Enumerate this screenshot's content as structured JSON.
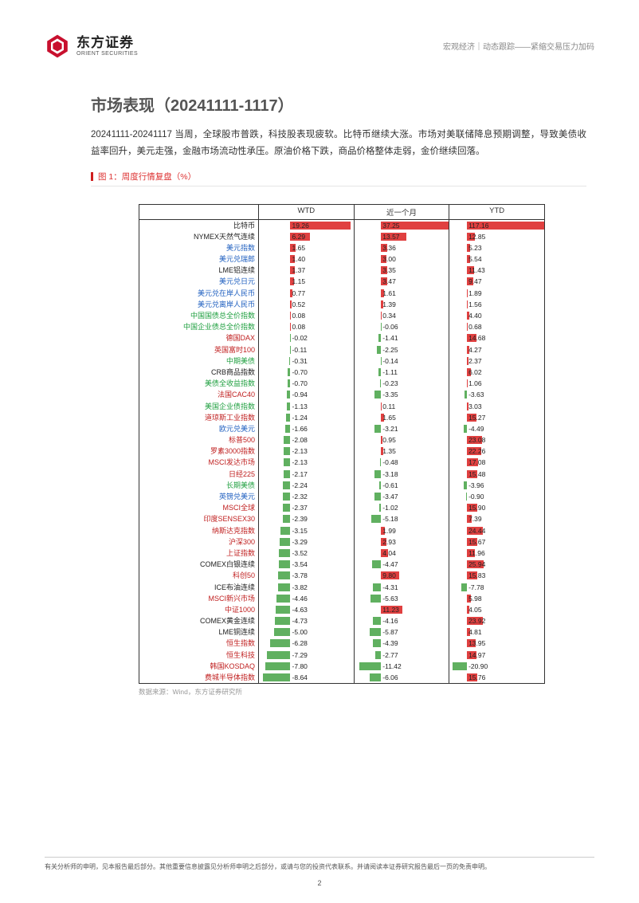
{
  "header": {
    "logo_cn": "东方证券",
    "logo_en": "ORIENT SECURITIES",
    "category": "宏观经济",
    "sep1": "｜",
    "subcategory": "动态跟踪",
    "sep2": " —— ",
    "doc_title": "紧缩交易压力加码"
  },
  "title": "市场表现（20241111-1117）",
  "paragraph": "20241111-20241117 当周，全球股市普跌，科技股表现疲软。比特币继续大涨。市场对美联储降息预期调整，导致美债收益率回升，美元走强，金融市场流动性承压。原油价格下跌，商品价格整体走弱，金价继续回落。",
  "figure": {
    "caption": "图 1：周度行情复盘（%）",
    "source": "数据来源：Wind，东方证券研究所",
    "columns": [
      "WTD",
      "近一个月",
      "YTD"
    ],
    "label_colors": {
      "default": "#c02020",
      "blue": "#2060c0",
      "green": "#20a040",
      "black": "#222222"
    },
    "bar_colors": {
      "pos": "#e04040",
      "neg": "#60b060"
    },
    "col_ranges": [
      {
        "min": -10,
        "max": 20,
        "zero_pct": 33
      },
      {
        "min": -12,
        "max": 38,
        "zero_pct": 28
      },
      {
        "min": -25,
        "max": 118,
        "zero_pct": 18
      }
    ],
    "rows": [
      {
        "label": "比特币",
        "color": "black",
        "v": [
          19.26,
          37.25,
          117.16
        ]
      },
      {
        "label": "NYMEX天然气连续",
        "color": "black",
        "v": [
          6.29,
          13.57,
          12.85
        ]
      },
      {
        "label": "美元指数",
        "color": "blue",
        "v": [
          1.65,
          3.36,
          5.23
        ]
      },
      {
        "label": "美元兑瑞郎",
        "color": "blue",
        "v": [
          1.4,
          3.0,
          5.54
        ]
      },
      {
        "label": "LME铝连续",
        "color": "black",
        "v": [
          1.37,
          3.35,
          11.43
        ]
      },
      {
        "label": "美元兑日元",
        "color": "blue",
        "v": [
          1.15,
          3.47,
          9.47
        ]
      },
      {
        "label": "美元兑在岸人民币",
        "color": "blue",
        "v": [
          0.77,
          1.61,
          1.89
        ]
      },
      {
        "label": "美元兑离岸人民币",
        "color": "blue",
        "v": [
          0.52,
          1.39,
          1.56
        ]
      },
      {
        "label": "中国国债总全价指数",
        "color": "green",
        "v": [
          0.08,
          0.34,
          4.4
        ]
      },
      {
        "label": "中国企业债总全价指数",
        "color": "green",
        "v": [
          0.08,
          -0.06,
          0.68
        ]
      },
      {
        "label": "德国DAX",
        "color": "default",
        "v": [
          -0.02,
          -1.41,
          14.68
        ]
      },
      {
        "label": "英国富时100",
        "color": "default",
        "v": [
          -0.11,
          -2.25,
          4.27
        ]
      },
      {
        "label": "中期美债",
        "color": "green",
        "v": [
          -0.31,
          -0.14,
          2.37
        ]
      },
      {
        "label": "CRB商品指数",
        "color": "black",
        "v": [
          -0.7,
          -1.11,
          6.02
        ]
      },
      {
        "label": "美债全收益指数",
        "color": "green",
        "v": [
          -0.7,
          -0.23,
          1.06
        ]
      },
      {
        "label": "法国CAC40",
        "color": "default",
        "v": [
          -0.94,
          -3.35,
          -3.63
        ]
      },
      {
        "label": "美国企业债指数",
        "color": "green",
        "v": [
          -1.13,
          0.11,
          3.03
        ]
      },
      {
        "label": "道琼斯工业指数",
        "color": "default",
        "v": [
          -1.24,
          1.65,
          15.27
        ]
      },
      {
        "label": "欧元兑美元",
        "color": "blue",
        "v": [
          -1.66,
          -3.21,
          -4.49
        ]
      },
      {
        "label": "标普500",
        "color": "default",
        "v": [
          -2.08,
          0.95,
          23.08
        ]
      },
      {
        "label": "罗素3000指数",
        "color": "default",
        "v": [
          -2.13,
          1.35,
          22.26
        ]
      },
      {
        "label": "MSCI发达市场",
        "color": "default",
        "v": [
          -2.13,
          -0.48,
          17.08
        ]
      },
      {
        "label": "日经225",
        "color": "default",
        "v": [
          -2.17,
          -3.18,
          15.48
        ]
      },
      {
        "label": "长期美债",
        "color": "green",
        "v": [
          -2.24,
          -0.61,
          -3.96
        ]
      },
      {
        "label": "英镑兑美元",
        "color": "blue",
        "v": [
          -2.32,
          -3.47,
          -0.9
        ]
      },
      {
        "label": "MSCI全球",
        "color": "default",
        "v": [
          -2.37,
          -1.02,
          15.9
        ]
      },
      {
        "label": "印度SENSEX30",
        "color": "default",
        "v": [
          -2.39,
          -5.18,
          7.39
        ]
      },
      {
        "label": "纳斯达克指数",
        "color": "default",
        "v": [
          -3.15,
          1.99,
          24.44
        ]
      },
      {
        "label": "沪深300",
        "color": "default",
        "v": [
          -3.29,
          2.93,
          15.67
        ]
      },
      {
        "label": "上证指数",
        "color": "default",
        "v": [
          -3.52,
          4.04,
          11.96
        ]
      },
      {
        "label": "COMEX白银连续",
        "color": "black",
        "v": [
          -3.54,
          -4.47,
          25.94
        ]
      },
      {
        "label": "科创50",
        "color": "default",
        "v": [
          -3.78,
          9.8,
          15.83
        ]
      },
      {
        "label": "ICE布油连续",
        "color": "black",
        "v": [
          -3.82,
          -4.31,
          -7.78
        ]
      },
      {
        "label": "MSCI新兴市场",
        "color": "default",
        "v": [
          -4.46,
          -5.63,
          5.98
        ]
      },
      {
        "label": "中证1000",
        "color": "default",
        "v": [
          -4.63,
          11.23,
          4.05
        ]
      },
      {
        "label": "COMEX黄金连续",
        "color": "black",
        "v": [
          -4.73,
          -4.16,
          23.92
        ]
      },
      {
        "label": "LME铜连续",
        "color": "black",
        "v": [
          -5.0,
          -5.87,
          4.81
        ]
      },
      {
        "label": "恒生指数",
        "color": "default",
        "v": [
          -6.28,
          -4.39,
          13.95
        ]
      },
      {
        "label": "恒生科技",
        "color": "default",
        "v": [
          -7.29,
          -2.77,
          14.97
        ]
      },
      {
        "label": "韩国KOSDAQ",
        "color": "default",
        "v": [
          -7.8,
          -11.42,
          -20.9
        ]
      },
      {
        "label": "费城半导体指数",
        "color": "default",
        "v": [
          -8.64,
          -6.06,
          15.76
        ]
      }
    ]
  },
  "footer": {
    "disclaimer": "有关分析师的申明，见本报告最后部分。其他重要信息披露见分析师申明之后部分，或请与您的投资代表联系。并请阅读本证券研究报告最后一页的免责申明。",
    "page": "2"
  },
  "colors": {
    "brand_red": "#c8102e",
    "caption_red": "#d33333",
    "text_gray": "#555555"
  }
}
